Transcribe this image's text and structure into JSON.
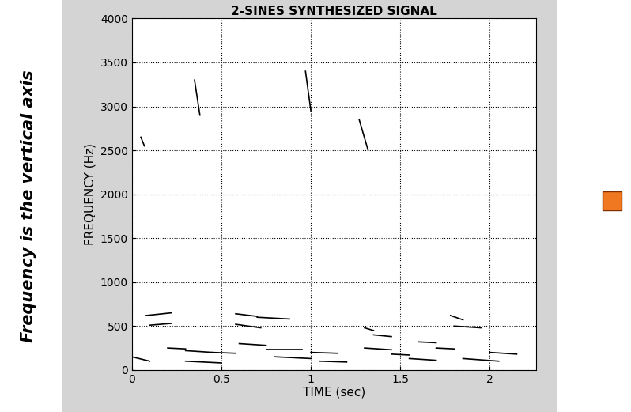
{
  "chart_data": {
    "type": "line",
    "title": "2-SINES SYNTHESIZED SIGNAL",
    "x_label": "TIME (sec)",
    "y_label": "FREQUENCY (Hz)",
    "annotations": [
      "Frequency is the vertical axis"
    ],
    "color": "#000000",
    "line_style": "solid",
    "segments": [
      {
        "x": [
          0.08,
          0.22
        ],
        "values": [
          620,
          650
        ]
      },
      {
        "x": [
          0.1,
          0.22
        ],
        "values": [
          510,
          530
        ]
      },
      {
        "x": [
          0.2,
          0.3
        ],
        "values": [
          250,
          240
        ]
      },
      {
        "x": [
          0.0,
          0.1
        ],
        "values": [
          150,
          100
        ]
      },
      {
        "x": [
          0.3,
          0.45
        ],
        "values": [
          220,
          200
        ]
      },
      {
        "x": [
          0.3,
          0.5
        ],
        "values": [
          100,
          80
        ]
      },
      {
        "x": [
          0.58,
          0.7
        ],
        "values": [
          640,
          610
        ]
      },
      {
        "x": [
          0.7,
          0.88
        ],
        "values": [
          600,
          580
        ]
      },
      {
        "x": [
          0.58,
          0.72
        ],
        "values": [
          520,
          480
        ]
      },
      {
        "x": [
          0.45,
          0.58
        ],
        "values": [
          200,
          190
        ]
      },
      {
        "x": [
          0.6,
          0.75
        ],
        "values": [
          300,
          280
        ]
      },
      {
        "x": [
          0.75,
          0.95
        ],
        "values": [
          230,
          230
        ]
      },
      {
        "x": [
          0.8,
          1.0
        ],
        "values": [
          150,
          130
        ]
      },
      {
        "x": [
          1.0,
          1.15
        ],
        "values": [
          200,
          190
        ]
      },
      {
        "x": [
          1.05,
          1.2
        ],
        "values": [
          100,
          90
        ]
      },
      {
        "x": [
          1.3,
          1.35
        ],
        "values": [
          480,
          450
        ]
      },
      {
        "x": [
          1.35,
          1.45
        ],
        "values": [
          400,
          380
        ]
      },
      {
        "x": [
          1.3,
          1.45
        ],
        "values": [
          250,
          230
        ]
      },
      {
        "x": [
          1.45,
          1.55
        ],
        "values": [
          180,
          170
        ]
      },
      {
        "x": [
          1.55,
          1.7
        ],
        "values": [
          130,
          110
        ]
      },
      {
        "x": [
          1.6,
          1.7
        ],
        "values": [
          320,
          310
        ]
      },
      {
        "x": [
          1.7,
          1.8
        ],
        "values": [
          250,
          240
        ]
      },
      {
        "x": [
          1.78,
          1.85
        ],
        "values": [
          620,
          570
        ]
      },
      {
        "x": [
          1.8,
          1.95
        ],
        "values": [
          500,
          480
        ]
      },
      {
        "x": [
          1.85,
          2.05
        ],
        "values": [
          130,
          100
        ]
      },
      {
        "x": [
          2.0,
          2.15
        ],
        "values": [
          200,
          180
        ]
      },
      {
        "x": [
          0.35,
          0.38
        ],
        "values": [
          3300,
          2900
        ]
      },
      {
        "x": [
          0.97,
          1.0
        ],
        "values": [
          3400,
          2950
        ]
      },
      {
        "x": [
          1.27,
          1.32
        ],
        "values": [
          2850,
          2500
        ]
      },
      {
        "x": [
          0.05,
          0.07
        ],
        "values": [
          2650,
          2550
        ]
      }
    ],
    "xlim": [
      0,
      2.26
    ],
    "xticks": [
      0,
      0.5,
      1,
      1.5,
      2
    ],
    "ylim": [
      0,
      4000
    ],
    "yticks": [
      0,
      500,
      1000,
      1500,
      2000,
      2500,
      3000,
      3500,
      4000
    ],
    "grid": true
  }
}
